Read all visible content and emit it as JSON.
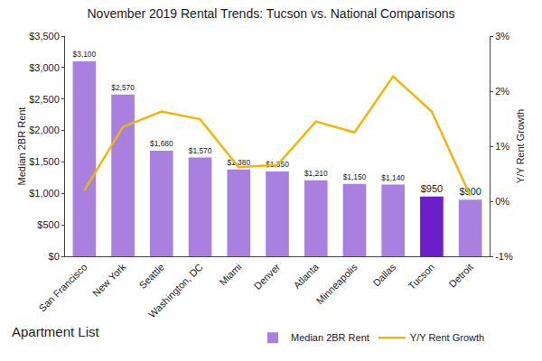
{
  "chart_data": {
    "type": "bar",
    "title": "November 2019 Rental Trends: Tucson vs. National Comparisons",
    "categories": [
      "San Francisco",
      "New York",
      "Seattle",
      "Washington, DC",
      "Miami",
      "Denver",
      "Atlanta",
      "Minneapolis",
      "Dallas",
      "Tucson",
      "Detroit"
    ],
    "y_label": "Median 2BR Rent",
    "y2_label": "Y/Y Rent Growth",
    "series": [
      {
        "name": "Median 2BR Rent",
        "type": "bar",
        "values": [
          3100,
          2570,
          1680,
          1570,
          1380,
          1350,
          1210,
          1150,
          1140,
          950,
          900
        ],
        "value_labels": [
          "$3,100",
          "$2,570",
          "$1,680",
          "$1,570",
          "$1,380",
          "$1,350",
          "$1,210",
          "$1,150",
          "$1,140",
          "$950",
          "$900"
        ],
        "data_labels": true,
        "color": "#a97fe0",
        "colors": [
          "#a97fe0",
          "#a97fe0",
          "#a97fe0",
          "#a97fe0",
          "#a97fe0",
          "#a97fe0",
          "#a97fe0",
          "#a97fe0",
          "#a97fe0",
          "#6a1fca",
          "#a97fe0"
        ]
      },
      {
        "name": "Y/Y Rent Growth",
        "type": "line",
        "axis": "y2",
        "values": [
          0.2,
          1.35,
          1.63,
          1.49,
          0.62,
          0.66,
          1.45,
          1.25,
          2.27,
          1.63,
          0.1
        ],
        "color": "#f2b705"
      }
    ],
    "ylim": [
      0,
      3500
    ],
    "yticks": [
      {
        "value": 0,
        "label": "$0"
      },
      {
        "value": 500,
        "label": "$500"
      },
      {
        "value": 1000,
        "label": "$1,000"
      },
      {
        "value": 1500,
        "label": "$1,500"
      },
      {
        "value": 2000,
        "label": "$2,000"
      },
      {
        "value": 2500,
        "label": "$2,500"
      },
      {
        "value": 3000,
        "label": "$3,000"
      },
      {
        "value": 3500,
        "label": "$3,500"
      }
    ],
    "y2lim": [
      -1,
      3
    ],
    "y2ticks": [
      {
        "value": -1,
        "label": "-1%"
      },
      {
        "value": 0,
        "label": "0%"
      },
      {
        "value": 1,
        "label": "1%"
      },
      {
        "value": 2,
        "label": "2%"
      },
      {
        "value": 3,
        "label": "3%"
      }
    ],
    "grid": false,
    "legend": "bottom",
    "annotations": [
      "Apartment List"
    ]
  }
}
